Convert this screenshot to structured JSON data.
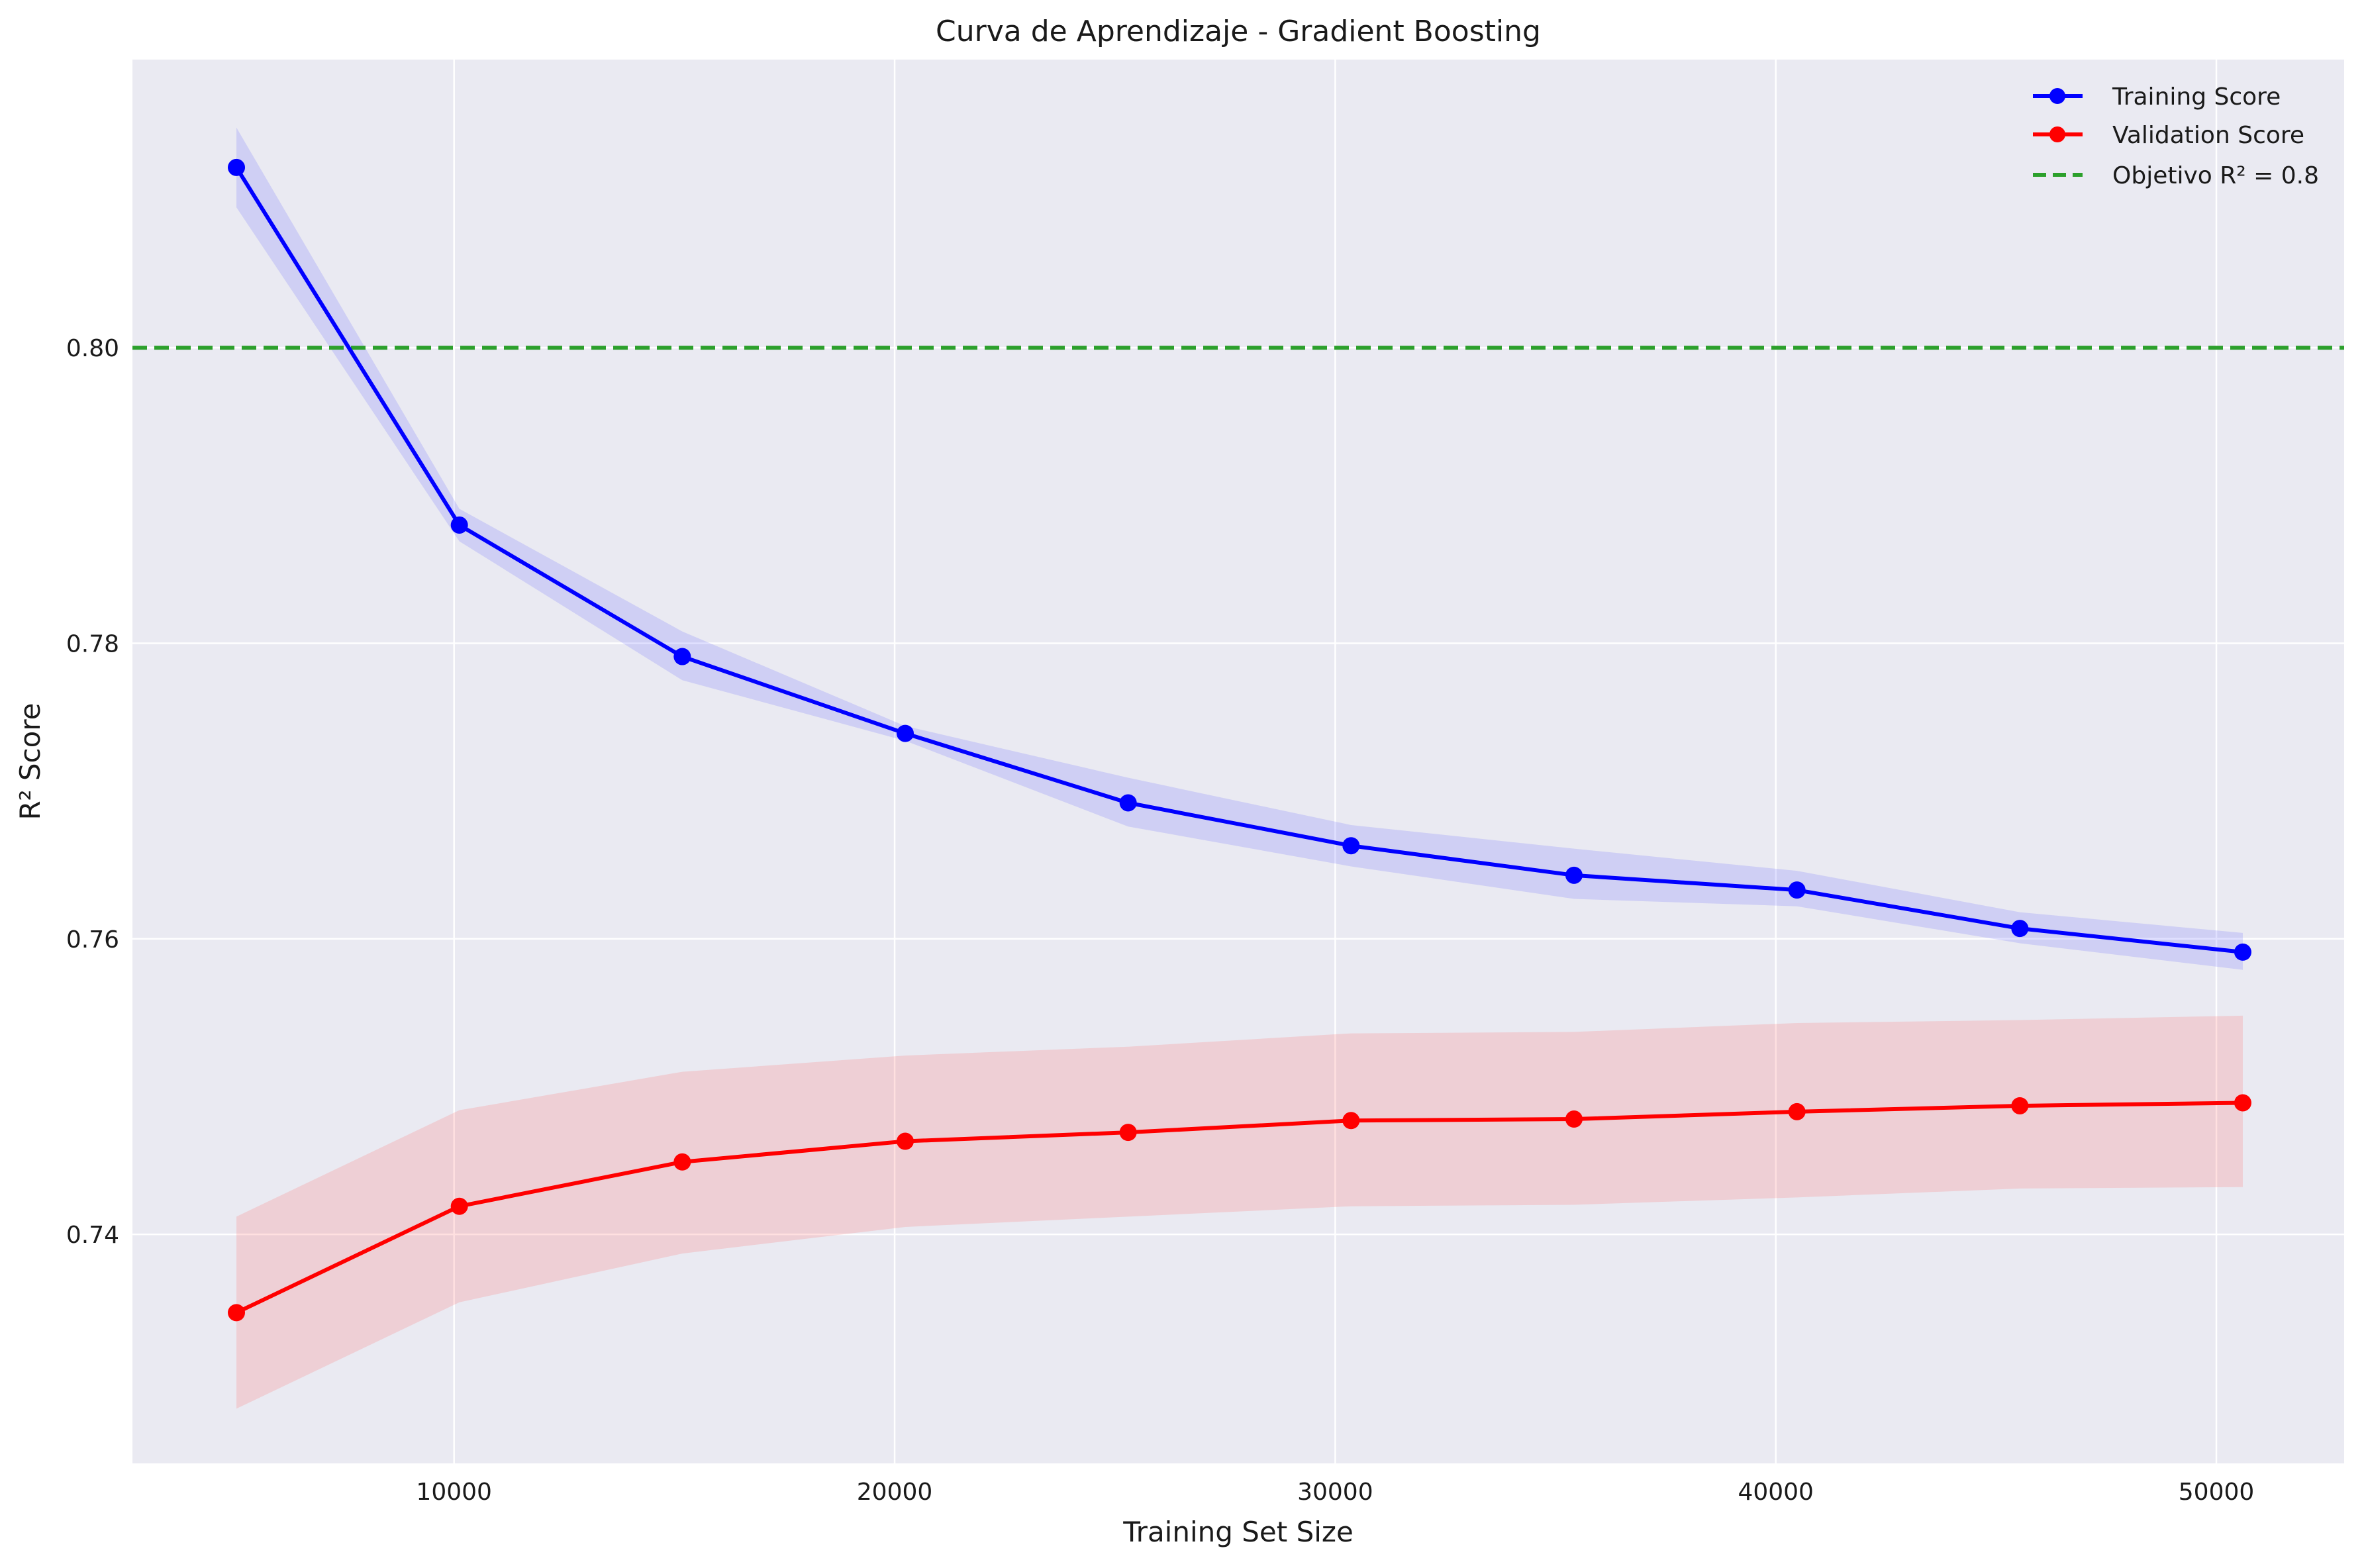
{
  "chart_data": {
    "type": "line",
    "title": "Curva de Aprendizaje - Gradient Boosting",
    "xlabel": "Training Set Size",
    "ylabel": "R² Score",
    "xlim": [
      2700,
      52900
    ],
    "ylim": [
      0.7245,
      0.8195
    ],
    "xticks": [
      10000,
      20000,
      30000,
      40000,
      50000
    ],
    "xtick_labels": [
      "10000",
      "20000",
      "30000",
      "40000",
      "50000"
    ],
    "yticks": [
      0.74,
      0.76,
      0.78,
      0.8
    ],
    "ytick_labels": [
      "0.74",
      "0.76",
      "0.78",
      "0.80"
    ],
    "grid": true,
    "legend_position": "top-right",
    "x": [
      5060,
      10120,
      15180,
      20240,
      25300,
      30360,
      35420,
      40480,
      45540,
      50600
    ],
    "series": [
      {
        "name": "Training Score",
        "color": "#0000ff",
        "band_color": "#6666ff",
        "values": [
          0.8122,
          0.788,
          0.7791,
          0.7739,
          0.7692,
          0.7663,
          0.7643,
          0.7633,
          0.7607,
          0.7591
        ],
        "band_low": [
          0.8095,
          0.7869,
          0.7775,
          0.7734,
          0.7676,
          0.7649,
          0.7627,
          0.7622,
          0.7597,
          0.7579
        ],
        "band_high": [
          0.8149,
          0.7891,
          0.7808,
          0.7744,
          0.7709,
          0.7677,
          0.7661,
          0.7646,
          0.7618,
          0.7604
        ]
      },
      {
        "name": "Validation Score",
        "color": "#ff0000",
        "band_color": "#ff6666",
        "values": [
          0.7347,
          0.7419,
          0.7449,
          0.7463,
          0.7469,
          0.7477,
          0.7478,
          0.7483,
          0.7487,
          0.7489
        ],
        "band_low": [
          0.7282,
          0.7354,
          0.7387,
          0.7405,
          0.7412,
          0.7419,
          0.742,
          0.7425,
          0.7431,
          0.7432
        ],
        "band_high": [
          0.7412,
          0.7484,
          0.751,
          0.7521,
          0.7527,
          0.7536,
          0.7537,
          0.7543,
          0.7545,
          0.7548
        ]
      }
    ],
    "reference_line": {
      "name": "Objetivo R² = 0.8",
      "value": 0.8,
      "color": "#2ca02c",
      "style": "dashed"
    }
  }
}
